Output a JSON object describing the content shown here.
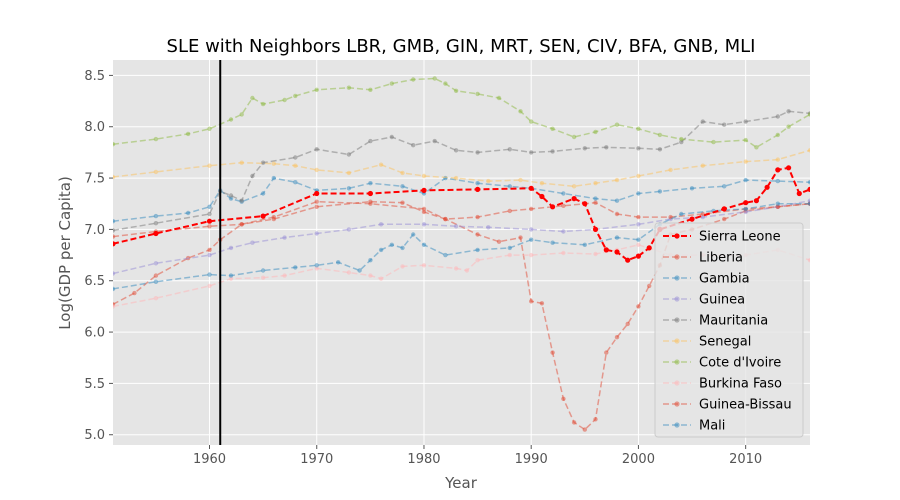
{
  "chart_data": {
    "type": "line",
    "title": "SLE with Neighbors LBR, GMB, GIN, MRT, SEN, CIV, BFA, GNB, MLI",
    "xlabel": "Year",
    "ylabel": "Log(GDP per Capita)",
    "xlim": [
      1951,
      2016
    ],
    "ylim": [
      4.9,
      8.65
    ],
    "x_ticks": [
      1960,
      1970,
      1980,
      1990,
      2000,
      2010
    ],
    "y_ticks": [
      5.0,
      5.5,
      6.0,
      6.5,
      7.0,
      7.5,
      8.0,
      8.5
    ],
    "grid": true,
    "legend_position": "lower-right",
    "vertical_line": {
      "x": 1961,
      "color": "#000000"
    },
    "series": [
      {
        "name": "Sierra Leone",
        "color": "#ff0000",
        "highlight": true,
        "points": [
          [
            1951,
            6.86
          ],
          [
            1955,
            6.96
          ],
          [
            1960,
            7.08
          ],
          [
            1965,
            7.13
          ],
          [
            1970,
            7.35
          ],
          [
            1975,
            7.35
          ],
          [
            1980,
            7.38
          ],
          [
            1985,
            7.39
          ],
          [
            1990,
            7.4
          ],
          [
            1991,
            7.32
          ],
          [
            1992,
            7.22
          ],
          [
            1994,
            7.3
          ],
          [
            1995,
            7.25
          ],
          [
            1996,
            7.0
          ],
          [
            1997,
            6.8
          ],
          [
            1998,
            6.78
          ],
          [
            1999,
            6.7
          ],
          [
            2000,
            6.74
          ],
          [
            2001,
            6.82
          ],
          [
            2002,
            7.0
          ],
          [
            2005,
            7.1
          ],
          [
            2008,
            7.2
          ],
          [
            2010,
            7.26
          ],
          [
            2011,
            7.28
          ],
          [
            2012,
            7.41
          ],
          [
            2013,
            7.58
          ],
          [
            2014,
            7.6
          ],
          [
            2015,
            7.35
          ],
          [
            2016,
            7.39
          ]
        ]
      },
      {
        "name": "Liberia",
        "color": "#e24a33",
        "points": [
          [
            1951,
            6.27
          ],
          [
            1953,
            6.38
          ],
          [
            1955,
            6.55
          ],
          [
            1958,
            6.72
          ],
          [
            1960,
            6.8
          ],
          [
            1961,
            6.9
          ],
          [
            1963,
            7.05
          ],
          [
            1966,
            7.12
          ],
          [
            1970,
            7.27
          ],
          [
            1975,
            7.25
          ],
          [
            1980,
            7.2
          ],
          [
            1982,
            7.1
          ],
          [
            1985,
            6.95
          ],
          [
            1987,
            6.88
          ],
          [
            1989,
            6.92
          ],
          [
            1990,
            6.3
          ],
          [
            1991,
            6.28
          ],
          [
            1992,
            5.8
          ],
          [
            1993,
            5.35
          ],
          [
            1994,
            5.12
          ],
          [
            1995,
            5.05
          ],
          [
            1996,
            5.15
          ],
          [
            1997,
            5.8
          ],
          [
            1998,
            5.95
          ],
          [
            1999,
            6.08
          ],
          [
            2000,
            6.25
          ],
          [
            2001,
            6.45
          ],
          [
            2002,
            6.65
          ],
          [
            2003,
            6.95
          ],
          [
            2005,
            7.0
          ],
          [
            2008,
            7.1
          ],
          [
            2010,
            7.18
          ],
          [
            2013,
            7.22
          ],
          [
            2016,
            7.25
          ]
        ]
      },
      {
        "name": "Gambia",
        "color": "#348abd",
        "points": [
          [
            1951,
            7.08
          ],
          [
            1955,
            7.13
          ],
          [
            1958,
            7.16
          ],
          [
            1960,
            7.22
          ],
          [
            1961,
            7.38
          ],
          [
            1962,
            7.3
          ],
          [
            1963,
            7.27
          ],
          [
            1965,
            7.35
          ],
          [
            1966,
            7.5
          ],
          [
            1968,
            7.46
          ],
          [
            1970,
            7.38
          ],
          [
            1973,
            7.4
          ],
          [
            1975,
            7.45
          ],
          [
            1978,
            7.42
          ],
          [
            1980,
            7.35
          ],
          [
            1982,
            7.5
          ],
          [
            1985,
            7.45
          ],
          [
            1988,
            7.42
          ],
          [
            1990,
            7.4
          ],
          [
            1993,
            7.35
          ],
          [
            1996,
            7.3
          ],
          [
            1998,
            7.28
          ],
          [
            2000,
            7.35
          ],
          [
            2002,
            7.37
          ],
          [
            2005,
            7.4
          ],
          [
            2008,
            7.42
          ],
          [
            2010,
            7.48
          ],
          [
            2013,
            7.47
          ],
          [
            2016,
            7.46
          ]
        ]
      },
      {
        "name": "Guinea",
        "color": "#988ed5",
        "points": [
          [
            1951,
            6.57
          ],
          [
            1955,
            6.67
          ],
          [
            1960,
            6.75
          ],
          [
            1962,
            6.82
          ],
          [
            1964,
            6.87
          ],
          [
            1967,
            6.92
          ],
          [
            1970,
            6.96
          ],
          [
            1973,
            7.0
          ],
          [
            1976,
            7.05
          ],
          [
            1980,
            7.05
          ],
          [
            1983,
            7.03
          ],
          [
            1986,
            7.02
          ],
          [
            1990,
            7.0
          ],
          [
            1993,
            6.98
          ],
          [
            1996,
            7.0
          ],
          [
            2000,
            7.05
          ],
          [
            2003,
            7.1
          ],
          [
            2006,
            7.12
          ],
          [
            2010,
            7.17
          ],
          [
            2013,
            7.22
          ],
          [
            2016,
            7.28
          ]
        ]
      },
      {
        "name": "Mauritania",
        "color": "#777777",
        "points": [
          [
            1951,
            6.99
          ],
          [
            1955,
            7.06
          ],
          [
            1960,
            7.15
          ],
          [
            1961,
            7.37
          ],
          [
            1962,
            7.33
          ],
          [
            1963,
            7.28
          ],
          [
            1964,
            7.52
          ],
          [
            1965,
            7.65
          ],
          [
            1968,
            7.7
          ],
          [
            1970,
            7.78
          ],
          [
            1973,
            7.73
          ],
          [
            1975,
            7.86
          ],
          [
            1977,
            7.9
          ],
          [
            1979,
            7.82
          ],
          [
            1981,
            7.86
          ],
          [
            1983,
            7.77
          ],
          [
            1985,
            7.75
          ],
          [
            1988,
            7.78
          ],
          [
            1990,
            7.75
          ],
          [
            1992,
            7.76
          ],
          [
            1995,
            7.79
          ],
          [
            1997,
            7.8
          ],
          [
            2000,
            7.79
          ],
          [
            2002,
            7.78
          ],
          [
            2004,
            7.85
          ],
          [
            2006,
            8.05
          ],
          [
            2008,
            8.02
          ],
          [
            2010,
            8.05
          ],
          [
            2013,
            8.1
          ],
          [
            2014,
            8.15
          ],
          [
            2016,
            8.13
          ]
        ]
      },
      {
        "name": "Senegal",
        "color": "#fbc15e",
        "points": [
          [
            1951,
            7.51
          ],
          [
            1955,
            7.56
          ],
          [
            1960,
            7.62
          ],
          [
            1963,
            7.65
          ],
          [
            1966,
            7.64
          ],
          [
            1968,
            7.62
          ],
          [
            1970,
            7.58
          ],
          [
            1973,
            7.55
          ],
          [
            1976,
            7.63
          ],
          [
            1978,
            7.55
          ],
          [
            1980,
            7.52
          ],
          [
            1983,
            7.5
          ],
          [
            1986,
            7.47
          ],
          [
            1989,
            7.48
          ],
          [
            1991,
            7.45
          ],
          [
            1994,
            7.42
          ],
          [
            1996,
            7.45
          ],
          [
            1998,
            7.48
          ],
          [
            2000,
            7.52
          ],
          [
            2003,
            7.58
          ],
          [
            2006,
            7.62
          ],
          [
            2010,
            7.66
          ],
          [
            2013,
            7.68
          ],
          [
            2016,
            7.77
          ]
        ]
      },
      {
        "name": "Cote d'Ivoire",
        "color": "#8eba42",
        "points": [
          [
            1951,
            7.83
          ],
          [
            1955,
            7.88
          ],
          [
            1958,
            7.93
          ],
          [
            1960,
            7.98
          ],
          [
            1962,
            8.07
          ],
          [
            1963,
            8.12
          ],
          [
            1964,
            8.28
          ],
          [
            1965,
            8.22
          ],
          [
            1967,
            8.26
          ],
          [
            1968,
            8.3
          ],
          [
            1970,
            8.36
          ],
          [
            1973,
            8.38
          ],
          [
            1975,
            8.36
          ],
          [
            1977,
            8.42
          ],
          [
            1979,
            8.46
          ],
          [
            1981,
            8.47
          ],
          [
            1982,
            8.42
          ],
          [
            1983,
            8.35
          ],
          [
            1985,
            8.32
          ],
          [
            1987,
            8.28
          ],
          [
            1989,
            8.15
          ],
          [
            1990,
            8.05
          ],
          [
            1992,
            7.98
          ],
          [
            1994,
            7.9
          ],
          [
            1996,
            7.95
          ],
          [
            1998,
            8.02
          ],
          [
            2000,
            7.98
          ],
          [
            2002,
            7.92
          ],
          [
            2004,
            7.88
          ],
          [
            2007,
            7.85
          ],
          [
            2010,
            7.87
          ],
          [
            2011,
            7.8
          ],
          [
            2013,
            7.92
          ],
          [
            2014,
            8.0
          ],
          [
            2016,
            8.12
          ]
        ]
      },
      {
        "name": "Burkina Faso",
        "color": "#ffb5b8",
        "points": [
          [
            1951,
            6.25
          ],
          [
            1955,
            6.33
          ],
          [
            1960,
            6.45
          ],
          [
            1962,
            6.52
          ],
          [
            1965,
            6.53
          ],
          [
            1967,
            6.55
          ],
          [
            1970,
            6.62
          ],
          [
            1973,
            6.58
          ],
          [
            1975,
            6.55
          ],
          [
            1976,
            6.52
          ],
          [
            1978,
            6.64
          ],
          [
            1980,
            6.65
          ],
          [
            1983,
            6.62
          ],
          [
            1984,
            6.6
          ],
          [
            1985,
            6.7
          ],
          [
            1988,
            6.75
          ],
          [
            1990,
            6.75
          ],
          [
            1993,
            6.77
          ],
          [
            1996,
            6.76
          ],
          [
            1998,
            6.8
          ],
          [
            2000,
            6.85
          ],
          [
            2003,
            6.75
          ],
          [
            2006,
            6.75
          ],
          [
            2010,
            6.75
          ],
          [
            2013,
            6.8
          ],
          [
            2016,
            6.7
          ]
        ]
      },
      {
        "name": "Guinea-Bissau",
        "color": "#e24a33",
        "points": [
          [
            1951,
            6.93
          ],
          [
            1955,
            6.98
          ],
          [
            1960,
            7.03
          ],
          [
            1963,
            7.05
          ],
          [
            1966,
            7.1
          ],
          [
            1970,
            7.22
          ],
          [
            1975,
            7.27
          ],
          [
            1978,
            7.26
          ],
          [
            1980,
            7.17
          ],
          [
            1982,
            7.1
          ],
          [
            1985,
            7.12
          ],
          [
            1988,
            7.18
          ],
          [
            1990,
            7.2
          ],
          [
            1993,
            7.23
          ],
          [
            1996,
            7.26
          ],
          [
            1998,
            7.15
          ],
          [
            2000,
            7.12
          ],
          [
            2003,
            7.12
          ],
          [
            2006,
            7.15
          ],
          [
            2010,
            7.2
          ],
          [
            2013,
            7.22
          ],
          [
            2016,
            7.25
          ]
        ]
      },
      {
        "name": "Mali",
        "color": "#348abd",
        "points": [
          [
            1951,
            6.42
          ],
          [
            1955,
            6.49
          ],
          [
            1960,
            6.56
          ],
          [
            1962,
            6.55
          ],
          [
            1965,
            6.6
          ],
          [
            1968,
            6.63
          ],
          [
            1970,
            6.65
          ],
          [
            1972,
            6.68
          ],
          [
            1974,
            6.6
          ],
          [
            1975,
            6.7
          ],
          [
            1976,
            6.8
          ],
          [
            1977,
            6.85
          ],
          [
            1978,
            6.82
          ],
          [
            1979,
            6.95
          ],
          [
            1980,
            6.85
          ],
          [
            1982,
            6.75
          ],
          [
            1985,
            6.8
          ],
          [
            1988,
            6.82
          ],
          [
            1990,
            6.9
          ],
          [
            1992,
            6.87
          ],
          [
            1995,
            6.85
          ],
          [
            1998,
            6.92
          ],
          [
            2000,
            6.9
          ],
          [
            2002,
            7.05
          ],
          [
            2004,
            7.15
          ],
          [
            2007,
            7.18
          ],
          [
            2010,
            7.2
          ],
          [
            2013,
            7.25
          ],
          [
            2016,
            7.25
          ]
        ]
      }
    ]
  }
}
